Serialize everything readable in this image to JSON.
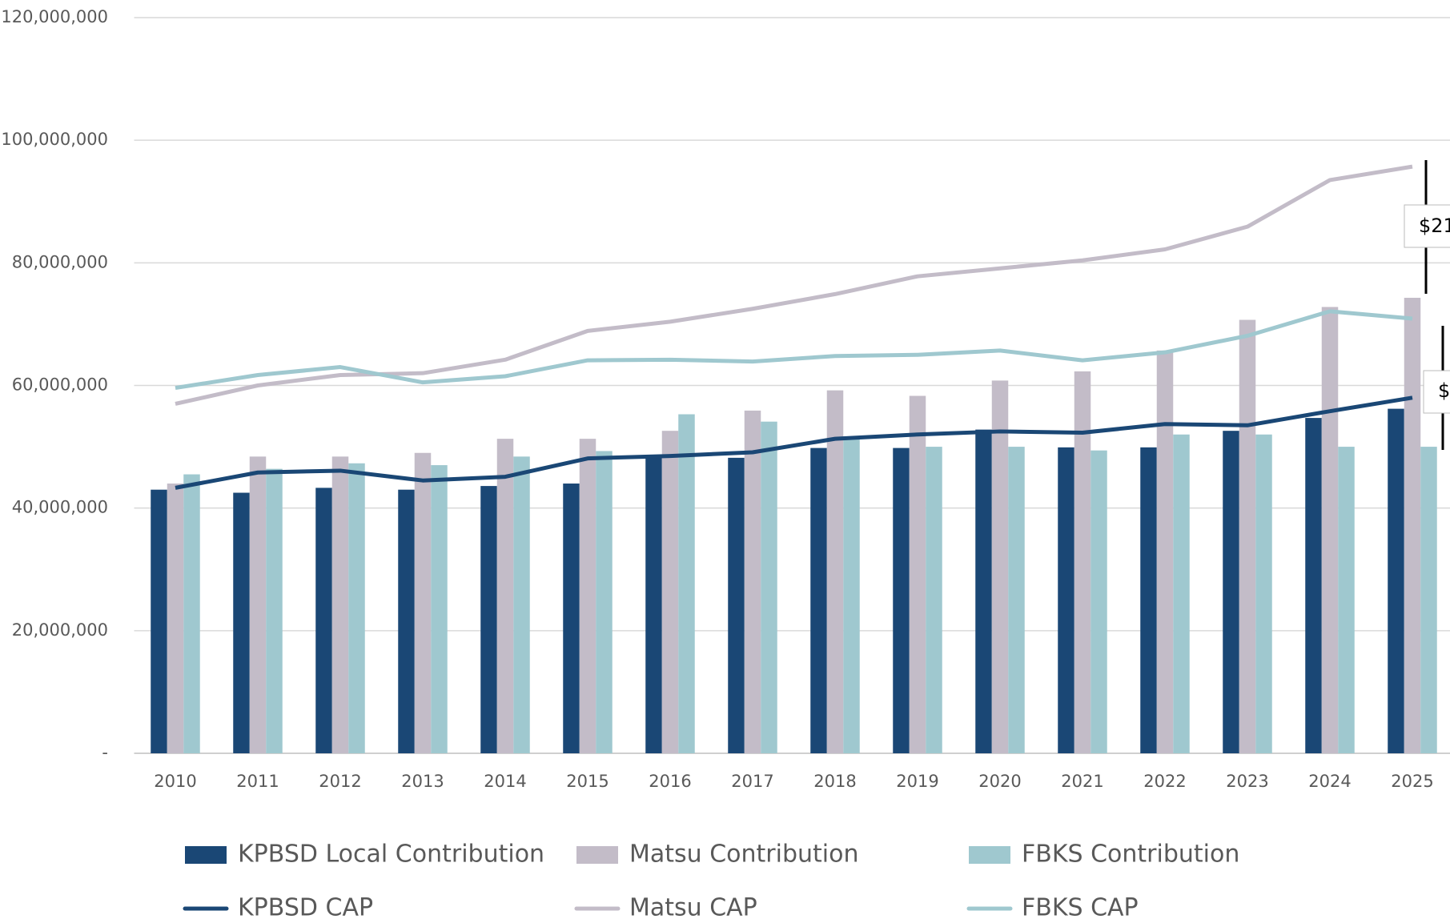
{
  "chart_data": {
    "type": "bar_line",
    "categories": [
      "2010",
      "2011",
      "2012",
      "2013",
      "2014",
      "2015",
      "2016",
      "2017",
      "2018",
      "2019",
      "2020",
      "2021",
      "2022",
      "2023",
      "2024",
      "2025"
    ],
    "series": [
      {
        "name": "KPBSD Local Contribution",
        "kind": "bar",
        "color": "#1a4775",
        "values": [
          43000000,
          42500000,
          43300000,
          43000000,
          43600000,
          44000000,
          48500000,
          48200000,
          49800000,
          49800000,
          52800000,
          49900000,
          49900000,
          52600000,
          54700000,
          56200000
        ]
      },
      {
        "name": "Matsu Contribution",
        "kind": "bar",
        "color": "#c3bcc8",
        "values": [
          44000000,
          48400000,
          48400000,
          49000000,
          51300000,
          51300000,
          52600000,
          55900000,
          59200000,
          58300000,
          60800000,
          62300000,
          65700000,
          70700000,
          72800000,
          74300000
        ]
      },
      {
        "name": "FBKS Contribution",
        "kind": "bar",
        "color": "#9fc8cf",
        "values": [
          45500000,
          46400000,
          47300000,
          47000000,
          48400000,
          49300000,
          55300000,
          54100000,
          51300000,
          50000000,
          50000000,
          49400000,
          52000000,
          52000000,
          50000000,
          50000000
        ]
      },
      {
        "name": "KPBSD CAP",
        "kind": "line",
        "color": "#1a4775",
        "values": [
          43300000,
          45800000,
          46100000,
          44500000,
          45100000,
          48100000,
          48500000,
          49100000,
          51300000,
          52000000,
          52500000,
          52300000,
          53700000,
          53500000,
          55800000,
          58000000
        ]
      },
      {
        "name": "Matsu CAP",
        "kind": "line",
        "color": "#c3bcc8",
        "values": [
          57000000,
          60000000,
          61700000,
          62000000,
          64200000,
          68900000,
          70400000,
          72500000,
          74900000,
          77800000,
          79100000,
          80400000,
          82200000,
          85900000,
          93500000,
          95700000
        ]
      },
      {
        "name": "FBKS CAP",
        "kind": "line",
        "color": "#9fc8cf",
        "values": [
          59600000,
          61700000,
          63000000,
          60500000,
          61500000,
          64100000,
          64200000,
          63900000,
          64800000,
          65000000,
          65700000,
          64100000,
          65400000,
          68100000,
          72100000,
          70900000
        ]
      }
    ],
    "ylim": [
      0,
      120000000
    ],
    "yticks": [
      {
        "value": 0,
        "label": "-"
      },
      {
        "value": 20000000,
        "label": "20,000,000"
      },
      {
        "value": 40000000,
        "label": "40,000,000"
      },
      {
        "value": 60000000,
        "label": "60,000,000"
      },
      {
        "value": 80000000,
        "label": "80,000,000"
      },
      {
        "value": 100000000,
        "label": "100,000,000"
      },
      {
        "value": 120000000,
        "label": "120,000,000"
      }
    ],
    "grid": true,
    "annotations": [
      "$21",
      "$"
    ]
  }
}
